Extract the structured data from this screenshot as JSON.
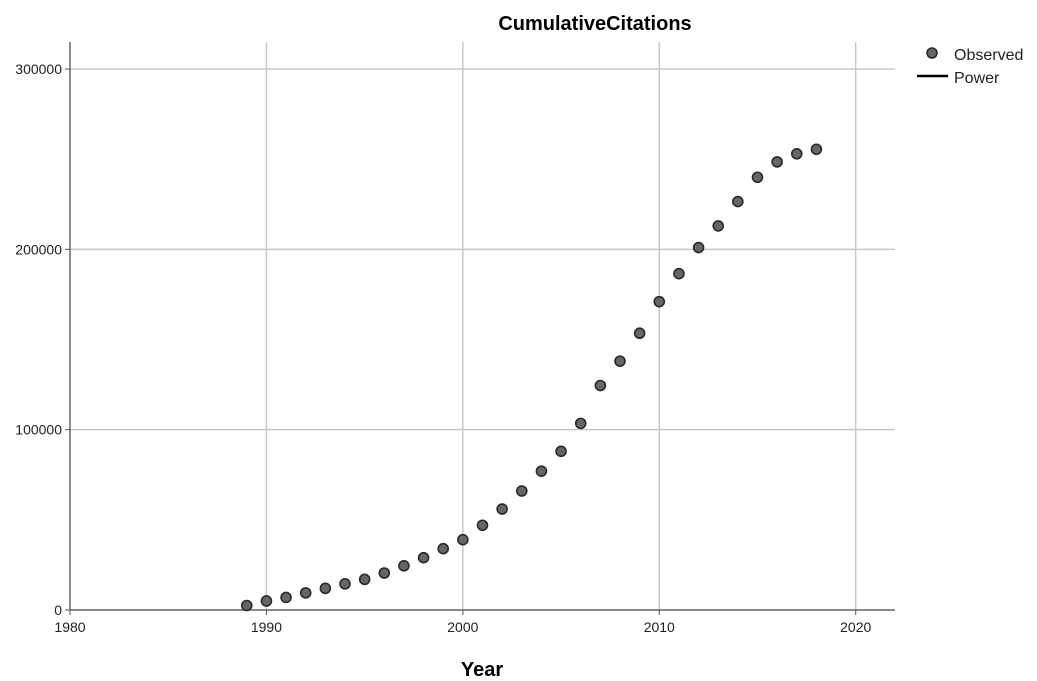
{
  "chart_data": {
    "type": "scatter",
    "title": "CumulativeCitations",
    "xlabel": "Year",
    "ylabel": "",
    "xlim": [
      1980,
      2022
    ],
    "ylim": [
      0,
      315000
    ],
    "x_ticks": [
      1980,
      1990,
      2000,
      2010,
      2020
    ],
    "x_tick_labels": [
      "1980",
      "1990",
      "2000",
      "2010",
      "2020"
    ],
    "y_ticks": [
      0,
      100000,
      200000,
      300000
    ],
    "y_tick_labels": [
      "0",
      "100000",
      "200000",
      "300000"
    ],
    "grid": true,
    "legend": {
      "position": "top-right",
      "entries": [
        {
          "label": "Observed",
          "marker": "circle"
        },
        {
          "label": "Power",
          "marker": "line"
        }
      ]
    },
    "series": [
      {
        "name": "Observed",
        "color": "#666666",
        "x": [
          1989,
          1990,
          1991,
          1992,
          1993,
          1994,
          1995,
          1996,
          1997,
          1998,
          1999,
          2000,
          2001,
          2002,
          2003,
          2004,
          2005,
          2006,
          2007,
          2008,
          2009,
          2010,
          2011,
          2012,
          2013,
          2014,
          2015,
          2016,
          2017,
          2018
        ],
        "y": [
          2500,
          5000,
          7000,
          9500,
          12000,
          14500,
          17000,
          20500,
          24500,
          29000,
          34000,
          39000,
          47000,
          56000,
          66000,
          77000,
          88000,
          103500,
          124500,
          138000,
          153500,
          171000,
          186500,
          201000,
          213000,
          226500,
          240000,
          248500,
          253000,
          255500
        ]
      }
    ]
  }
}
